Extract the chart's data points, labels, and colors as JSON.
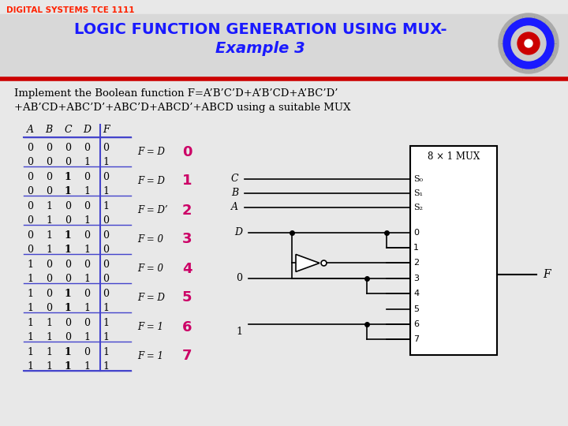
{
  "title_line1": "LOGIC FUNCTION GENERATION USING MUX-",
  "title_line2": "Example 3",
  "header_text": "DIGITAL SYSTEMS TCE 1111",
  "problem_text_line1": "Implement the Boolean function F=A’B’C’D+A’B’CD+A’BC’D’",
  "problem_text_line2": "+AB’CD+ABC’D’+ABC’D+ABCD’+ABCD using a suitable MUX",
  "table_headers": [
    "A",
    "B",
    "C",
    "D",
    "F"
  ],
  "table_rows": [
    [
      0,
      0,
      0,
      0,
      0
    ],
    [
      0,
      0,
      0,
      1,
      1
    ],
    [
      0,
      0,
      1,
      0,
      0
    ],
    [
      0,
      0,
      1,
      1,
      1
    ],
    [
      0,
      1,
      0,
      0,
      1
    ],
    [
      0,
      1,
      0,
      1,
      0
    ],
    [
      0,
      1,
      1,
      0,
      0
    ],
    [
      0,
      1,
      1,
      1,
      0
    ],
    [
      1,
      0,
      0,
      0,
      0
    ],
    [
      1,
      0,
      0,
      1,
      0
    ],
    [
      1,
      0,
      1,
      0,
      0
    ],
    [
      1,
      0,
      1,
      1,
      1
    ],
    [
      1,
      1,
      0,
      0,
      1
    ],
    [
      1,
      1,
      0,
      1,
      1
    ],
    [
      1,
      1,
      1,
      0,
      1
    ],
    [
      1,
      1,
      1,
      1,
      1
    ]
  ],
  "group_labels": [
    "F = D",
    "F = D",
    "F = D’",
    "F = 0",
    "F = 0",
    "F = D",
    "F = 1",
    "F = 1"
  ],
  "group_numbers": [
    "0",
    "1",
    "2",
    "3",
    "4",
    "5",
    "6",
    "7"
  ],
  "group_number_color": "#cc0066",
  "mux_label": "8 × 1 MUX",
  "select_labels": [
    "S₀",
    "S₁",
    "S₂"
  ],
  "select_signals": [
    "C",
    "B",
    "A"
  ],
  "output_label": "F",
  "bg_color": "#e8e8e8",
  "title_color": "#1a1aff",
  "header_color": "#ff2200",
  "text_color": "#000000",
  "red_line_color": "#cc0000",
  "table_line_color": "#4444cc",
  "white": "#ffffff"
}
